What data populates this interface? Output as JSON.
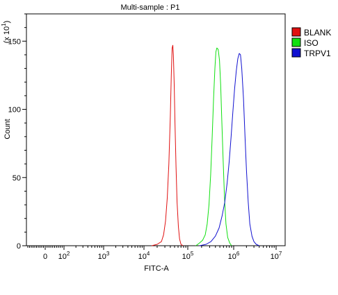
{
  "chart_data": {
    "type": "line",
    "title": "Multi-sample : P1",
    "xlabel": "FITC-A",
    "ylabel": "Count",
    "y_multiplier_label": "(x 10",
    "y_multiplier_exp": "1",
    "y_multiplier_close": ")",
    "x_scale": "biexponential (log)",
    "x_range": [
      "-10^2",
      "10^7"
    ],
    "ylim": [
      0,
      170
    ],
    "y_ticks": [
      0,
      50,
      100,
      150
    ],
    "x_tick_labels": [
      {
        "base": "0",
        "exp": "",
        "value": 0
      },
      {
        "base": "10",
        "exp": "2",
        "value": 100
      },
      {
        "base": "10",
        "exp": "3",
        "value": 1000
      },
      {
        "base": "10",
        "exp": "4",
        "value": 10000
      },
      {
        "base": "10",
        "exp": "5",
        "value": 100000
      },
      {
        "base": "10",
        "exp": "6",
        "value": 1000000
      },
      {
        "base": "10",
        "exp": "7",
        "value": 10000000
      }
    ],
    "legend_position": "top-right",
    "series": [
      {
        "name": "BLANK",
        "color": "#e01010",
        "points": [
          [
            15000,
            0
          ],
          [
            20000,
            1
          ],
          [
            25000,
            3
          ],
          [
            28000,
            8
          ],
          [
            31000,
            18
          ],
          [
            34000,
            35
          ],
          [
            37000,
            60
          ],
          [
            40000,
            95
          ],
          [
            42000,
            125
          ],
          [
            44000,
            145
          ],
          [
            45500,
            147
          ],
          [
            47000,
            140
          ],
          [
            49000,
            118
          ],
          [
            51000,
            90
          ],
          [
            54000,
            58
          ],
          [
            57000,
            32
          ],
          [
            61000,
            14
          ],
          [
            65000,
            5
          ],
          [
            70000,
            1
          ],
          [
            78000,
            0
          ]
        ]
      },
      {
        "name": "ISO",
        "color": "#10e010",
        "points": [
          [
            150000,
            0
          ],
          [
            180000,
            2
          ],
          [
            210000,
            4
          ],
          [
            240000,
            8
          ],
          [
            265000,
            16
          ],
          [
            290000,
            30
          ],
          [
            315000,
            52
          ],
          [
            340000,
            80
          ],
          [
            365000,
            108
          ],
          [
            390000,
            130
          ],
          [
            410000,
            142
          ],
          [
            430000,
            145
          ],
          [
            460000,
            144
          ],
          [
            490000,
            136
          ],
          [
            520000,
            118
          ],
          [
            550000,
            92
          ],
          [
            590000,
            62
          ],
          [
            630000,
            35
          ],
          [
            680000,
            16
          ],
          [
            740000,
            6
          ],
          [
            820000,
            2
          ],
          [
            900000,
            0
          ]
        ]
      },
      {
        "name": "TRPV1",
        "color": "#1010d0",
        "points": [
          [
            180000,
            0
          ],
          [
            250000,
            1
          ],
          [
            320000,
            3
          ],
          [
            400000,
            7
          ],
          [
            480000,
            13
          ],
          [
            560000,
            22
          ],
          [
            640000,
            32
          ],
          [
            720000,
            46
          ],
          [
            800000,
            62
          ],
          [
            880000,
            80
          ],
          [
            960000,
            98
          ],
          [
            1050000,
            115
          ],
          [
            1150000,
            128
          ],
          [
            1250000,
            137
          ],
          [
            1350000,
            141
          ],
          [
            1450000,
            140
          ],
          [
            1550000,
            130
          ],
          [
            1700000,
            108
          ],
          [
            1850000,
            80
          ],
          [
            2000000,
            55
          ],
          [
            2200000,
            32
          ],
          [
            2400000,
            16
          ],
          [
            2700000,
            7
          ],
          [
            3000000,
            3
          ],
          [
            3400000,
            1
          ],
          [
            4000000,
            0
          ]
        ]
      }
    ]
  }
}
